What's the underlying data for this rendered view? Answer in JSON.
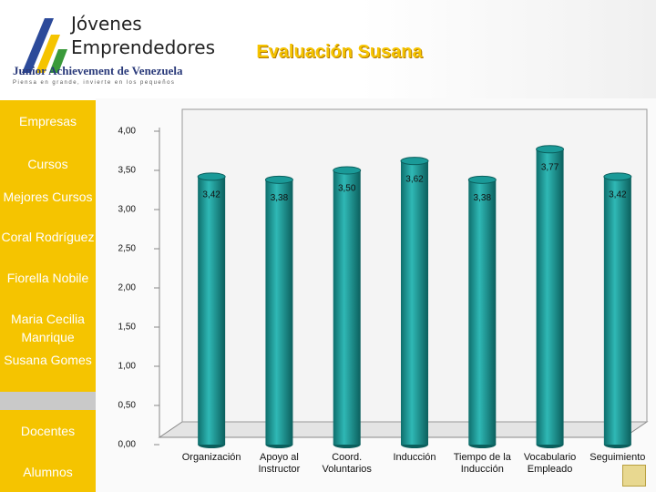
{
  "header": {
    "logo_line_1": "Jóvenes",
    "logo_line_2": "Emprendedores",
    "logo_org": "Junior Achievement de Venezuela",
    "logo_tagline": "Piensa en grande, invierte en los pequeños"
  },
  "sidebar": {
    "items": [
      "Empresas",
      "Cursos",
      "Mejores Cursos",
      "Coral Rodríguez",
      "Fiorella Nobile",
      "Maria Cecilia Manrique",
      "Susana Gomes",
      "Docentes",
      "Alumnos"
    ]
  },
  "chart_data": {
    "type": "bar",
    "title": "Evaluación Susana",
    "categories": [
      "Organización",
      "Apoyo al Instructor",
      "Coord. Voluntarios",
      "Inducción",
      "Tiempo de la Inducción",
      "Vocabulario Empleado",
      "Seguimiento"
    ],
    "values": [
      3.42,
      3.38,
      3.5,
      3.62,
      3.38,
      3.77,
      3.42
    ],
    "value_labels": [
      "3,42",
      "3,38",
      "3,50",
      "3,62",
      "3,38",
      "3,77",
      "3,42"
    ],
    "color": "#1a9a98",
    "ylim": [
      0,
      4
    ],
    "yticks": [
      {
        "value": 0,
        "label": "0,00"
      },
      {
        "value": 0.5,
        "label": "0,50"
      },
      {
        "value": 1,
        "label": "1,00"
      },
      {
        "value": 1.5,
        "label": "1,50"
      },
      {
        "value": 2,
        "label": "2,00"
      },
      {
        "value": 2.5,
        "label": "2,50"
      },
      {
        "value": 3,
        "label": "3,00"
      },
      {
        "value": 3.5,
        "label": "3,50"
      },
      {
        "value": 4,
        "label": "4,00"
      }
    ]
  }
}
